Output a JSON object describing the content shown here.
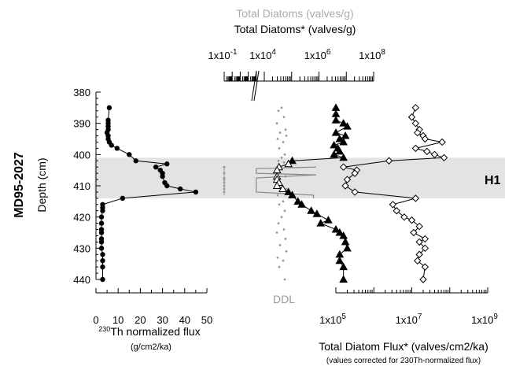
{
  "chart_data": [
    {
      "id": "depth_axis",
      "type": "axis",
      "label": "Depth (cm)",
      "core_label": "MD95-2027",
      "ticks": [
        380,
        390,
        400,
        410,
        420,
        430,
        440
      ],
      "range": [
        380,
        440
      ],
      "inverted": true
    },
    {
      "id": "th_flux",
      "type": "line",
      "xlabel": "230Th normalized flux",
      "xlabel_sup": "230",
      "xlabel_main": "Th normalized flux",
      "xunit": "(g/cm2/ka)",
      "xlim": [
        0,
        50
      ],
      "xticks": [
        0,
        5,
        10,
        15,
        20,
        25,
        30,
        35,
        40,
        45,
        50
      ],
      "xtick_labels": [
        "0",
        "10",
        "20",
        "30",
        "40",
        "50"
      ],
      "marker": "filled-circle",
      "points": [
        [
          6,
          385
        ],
        [
          5.5,
          389
        ],
        [
          5.5,
          390
        ],
        [
          5.5,
          391
        ],
        [
          5.5,
          392
        ],
        [
          5,
          393
        ],
        [
          5.5,
          394
        ],
        [
          5.5,
          395
        ],
        [
          6,
          396
        ],
        [
          7,
          397
        ],
        [
          9.5,
          398
        ],
        [
          15,
          400
        ],
        [
          18,
          402
        ],
        [
          32,
          403
        ],
        [
          27,
          404
        ],
        [
          29,
          405
        ],
        [
          30,
          406
        ],
        [
          30,
          407
        ],
        [
          31,
          409
        ],
        [
          32,
          410
        ],
        [
          38,
          411
        ],
        [
          45,
          412
        ],
        [
          12,
          414
        ],
        [
          3,
          416
        ],
        [
          3,
          417
        ],
        [
          3,
          418
        ],
        [
          2.5,
          420
        ],
        [
          2.5,
          422
        ],
        [
          2.5,
          424
        ],
        [
          2.5,
          425
        ],
        [
          2.5,
          427
        ],
        [
          2.5,
          428
        ],
        [
          2.5,
          430
        ],
        [
          3,
          432
        ],
        [
          3,
          434
        ],
        [
          3,
          436
        ],
        [
          3,
          440
        ]
      ]
    },
    {
      "id": "total_diatoms_conc",
      "type": "line",
      "title_raw": "Total Diatoms (valves/g)",
      "title_corrected": "Total Diatoms* (valves/g)",
      "log": true,
      "xticks_exp": [
        -1,
        4,
        6,
        8
      ],
      "xtick_labels": [
        "1x10-1",
        "1x104",
        "1x106",
        "1x108"
      ],
      "ddl_label": "DDL",
      "raw_ddl_depths": [
        385,
        386,
        388,
        390,
        392,
        393,
        394,
        395,
        396,
        398,
        400,
        401,
        402,
        402.5,
        405,
        407,
        409,
        411,
        413,
        415,
        416,
        418,
        420,
        422,
        424,
        425,
        427,
        429,
        431,
        433,
        434,
        436,
        440
      ],
      "corrected_points": [
        [
          5.9,
          404
        ],
        [
          3.0,
          404.5
        ],
        [
          3.0,
          406
        ],
        [
          5.9,
          406.5
        ],
        [
          3.0,
          407.5
        ],
        [
          3.0,
          412
        ],
        [
          5.8,
          413
        ],
        [
          5.8,
          414
        ]
      ]
    },
    {
      "id": "total_diatom_flux_triangles",
      "type": "line",
      "xlabel": "Total Diatom Flux* (valves/cm2/ka)",
      "xlabel_note": "(values corrected for 230Th-normalized flux)",
      "log": true,
      "xlim_exp": [
        5,
        9
      ],
      "xtick_labels": [
        "1x105",
        "1x107",
        "1x109"
      ],
      "marker": "filled-triangle",
      "open_marker_depths": [
        403,
        404,
        405,
        406,
        407,
        408,
        409,
        410,
        411
      ],
      "points_exp": [
        [
          5.0,
          385
        ],
        [
          5.0,
          387
        ],
        [
          5.0,
          389
        ],
        [
          5.2,
          390
        ],
        [
          5.3,
          391
        ],
        [
          5.0,
          393
        ],
        [
          5.25,
          394
        ],
        [
          5.1,
          395
        ],
        [
          5.2,
          396
        ],
        [
          4.95,
          397
        ],
        [
          5.05,
          398
        ],
        [
          5.1,
          399
        ],
        [
          4.95,
          400
        ],
        [
          5.2,
          401
        ],
        [
          3.85,
          402
        ],
        [
          3.75,
          403
        ],
        [
          3.5,
          404
        ],
        [
          3.45,
          405
        ],
        [
          3.45,
          407
        ],
        [
          3.45,
          408
        ],
        [
          3.5,
          409
        ],
        [
          3.45,
          410
        ],
        [
          3.6,
          411
        ],
        [
          3.75,
          412
        ],
        [
          3.85,
          413
        ],
        [
          4.0,
          415
        ],
        [
          4.1,
          416
        ],
        [
          4.35,
          418
        ],
        [
          4.5,
          419
        ],
        [
          4.8,
          421
        ],
        [
          4.6,
          422
        ],
        [
          5.0,
          424
        ],
        [
          5.1,
          425
        ],
        [
          5.2,
          426
        ],
        [
          5.25,
          428
        ],
        [
          5.3,
          430
        ],
        [
          5.1,
          432
        ],
        [
          5.1,
          434
        ],
        [
          5.2,
          436
        ],
        [
          5.2,
          440
        ]
      ]
    },
    {
      "id": "total_diatom_flux_diamonds",
      "type": "line",
      "log": true,
      "xlim_exp": [
        5,
        9
      ],
      "marker": "open-diamond",
      "points_exp": [
        [
          7.1,
          385
        ],
        [
          7.0,
          388
        ],
        [
          7.1,
          390
        ],
        [
          7.2,
          392
        ],
        [
          7.15,
          393
        ],
        [
          7.3,
          394
        ],
        [
          7.35,
          395
        ],
        [
          7.8,
          396
        ],
        [
          7.1,
          398
        ],
        [
          7.4,
          399
        ],
        [
          7.6,
          400
        ],
        [
          7.85,
          401
        ],
        [
          6.4,
          402
        ],
        [
          5.2,
          404
        ],
        [
          5.55,
          405
        ],
        [
          5.5,
          406
        ],
        [
          5.3,
          408
        ],
        [
          5.25,
          410
        ],
        [
          5.5,
          412
        ],
        [
          7.1,
          414
        ],
        [
          6.5,
          416
        ],
        [
          6.6,
          418
        ],
        [
          6.8,
          420
        ],
        [
          7.0,
          421
        ],
        [
          7.2,
          423
        ],
        [
          7.05,
          425
        ],
        [
          7.35,
          427
        ],
        [
          7.2,
          428
        ],
        [
          7.35,
          430
        ],
        [
          7.2,
          432
        ],
        [
          7.15,
          434
        ],
        [
          7.35,
          436
        ],
        [
          7.3,
          440
        ]
      ]
    },
    {
      "id": "event_band",
      "type": "band",
      "label": "H1",
      "depth_range": [
        401,
        414
      ]
    }
  ]
}
